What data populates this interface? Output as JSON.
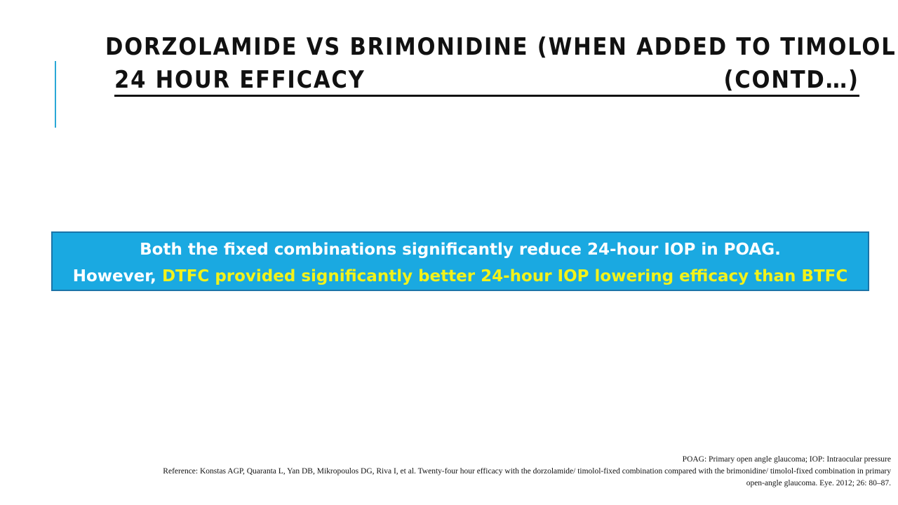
{
  "title": {
    "line1": "DORZOLAMIDE VS BRIMONIDINE (WHEN ADDED TO TIMOLOL)",
    "line2_left": "24 HOUR EFFICACY",
    "line2_right": "(CONTD…)"
  },
  "callout": {
    "line1": "Both the fixed combinations significantly reduce 24-hour IOP in POAG.",
    "line2_prefix": "However, ",
    "line2_highlight": "DTFC provided significantly better 24-hour IOP lowering efficacy than BTFC"
  },
  "footnotes": {
    "abbreviations": "POAG: Primary open angle glaucoma; IOP: Intraocular pressure",
    "reference_line1": "Reference: Konstas AGP, Quaranta L, Yan DB, Mikropoulos DG, Riva I, et al. Twenty-four hour efficacy with the dorzolamide/ timolol-fixed combination compared with the brimonidine/ timolol-fixed combination in primary",
    "reference_line2": "open-angle glaucoma. Eye. 2012; 26: 80–87."
  },
  "colors": {
    "accent": "#2aa8d6",
    "callout_background": "#1aa9e1",
    "callout_highlight": "#f2f21a"
  }
}
